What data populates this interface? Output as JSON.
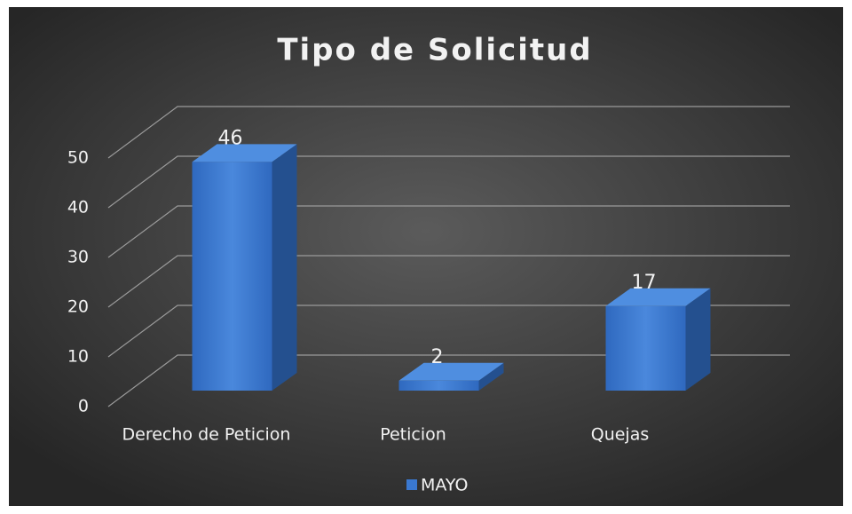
{
  "chart_data": {
    "type": "bar3d",
    "title": "Tipo de Solicitud",
    "categories": [
      "Derecho de Peticion",
      "Peticion",
      "Quejas"
    ],
    "series": [
      {
        "name": "MAYO",
        "color": "#3a78d0",
        "values": [
          46,
          2,
          17
        ]
      }
    ],
    "ylim": [
      0,
      50
    ],
    "yticks": [
      0,
      10,
      20,
      30,
      40,
      50
    ],
    "grid": true,
    "legend": "bottom"
  }
}
